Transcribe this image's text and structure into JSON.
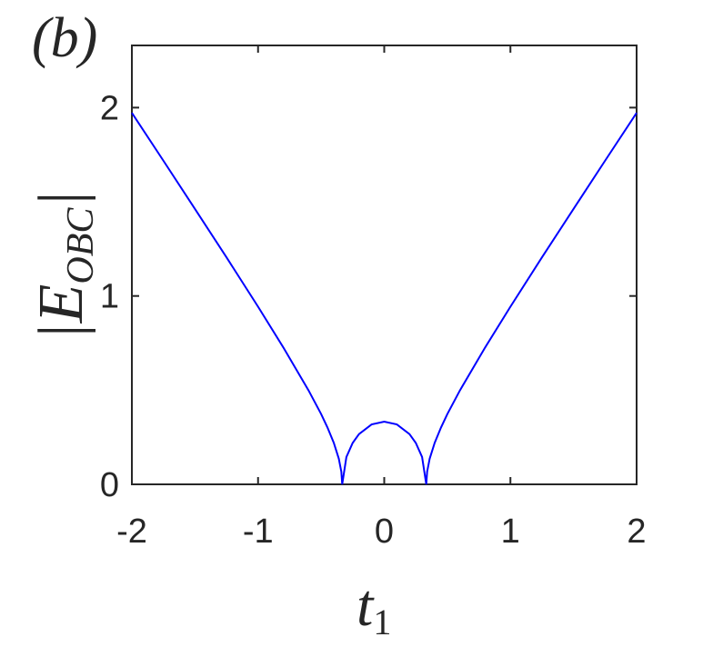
{
  "chart_data": {
    "type": "line",
    "title": "(b)",
    "x_label": {
      "base": "t",
      "sub": "1"
    },
    "y_label": {
      "base": "|E",
      "sub": "OBC",
      "end": "|"
    },
    "x": [
      -2,
      -1.75,
      -1.5,
      -1.25,
      -1,
      -0.8,
      -0.6,
      -0.5,
      -0.45,
      -0.4,
      -0.36,
      -0.34,
      -0.333,
      -0.3,
      -0.25,
      -0.2,
      -0.1,
      0,
      0.1,
      0.2,
      0.25,
      0.3,
      0.333,
      0.34,
      0.36,
      0.4,
      0.45,
      0.5,
      0.6,
      0.8,
      1,
      1.25,
      1.5,
      1.75,
      2
    ],
    "series": [
      {
        "color": "#0000ff",
        "values": [
          1.972,
          1.718,
          1.462,
          1.205,
          0.943,
          0.727,
          0.499,
          0.373,
          0.302,
          0.221,
          0.136,
          0.067,
          0,
          0.145,
          0.22,
          0.267,
          0.318,
          0.333,
          0.318,
          0.267,
          0.22,
          0.145,
          0,
          0.067,
          0.136,
          0.221,
          0.302,
          0.373,
          0.499,
          0.727,
          0.943,
          1.205,
          1.462,
          1.718,
          1.972
        ]
      }
    ],
    "xlim": [
      -2,
      2
    ],
    "ylim": [
      0,
      2.33
    ],
    "xticks": [
      -2,
      -1,
      0,
      1,
      2
    ],
    "yticks": [
      0,
      1,
      2
    ]
  }
}
